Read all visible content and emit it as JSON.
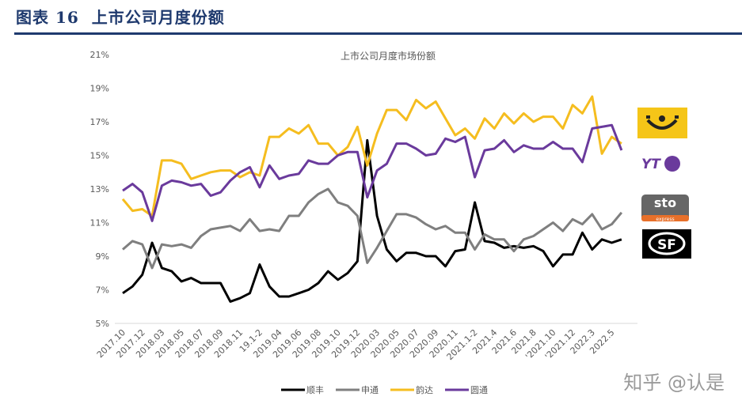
{
  "header": {
    "figure_label": "图表 16",
    "title": "上市公司月度份额"
  },
  "watermark": "知乎 @认是",
  "logos": [
    "yunda-logo",
    "yto-logo",
    "sto-logo",
    "sf-logo"
  ],
  "logo_text": {
    "yto": "YT",
    "sto": "sto",
    "sto_sub": "express",
    "sf": "SF"
  },
  "chart_data": {
    "type": "line",
    "title": "上市公司月度市场份额",
    "xlabel": "",
    "ylabel": "",
    "ylim": [
      5,
      21
    ],
    "yticks": [
      "5%",
      "7%",
      "9%",
      "11%",
      "13%",
      "15%",
      "17%",
      "19%",
      "21%"
    ],
    "grid": false,
    "legend": "bottom",
    "x_tick_labels": [
      "2017.10",
      "2017.12",
      "2018.03",
      "2018.05",
      "2018.07",
      "2018.09",
      "2018.11",
      "19.1-2",
      "2019.04",
      "2019.06",
      "2019.08",
      "2019.10",
      "2019.12",
      "2020.03",
      "2020.05",
      "2020.07",
      "2020.09",
      "2020.11",
      "2021.1-2",
      "2021.4",
      "2021.6",
      "2021.8",
      "'2021.10",
      "'2021.12",
      "2022.3",
      "2022.5"
    ],
    "series": [
      {
        "name": "顺丰",
        "color": "#000000",
        "values": [
          6.8,
          7.2,
          7.9,
          9.8,
          8.3,
          8.1,
          7.5,
          7.7,
          7.4,
          7.4,
          7.4,
          6.3,
          6.5,
          6.8,
          8.5,
          7.2,
          6.6,
          6.6,
          6.8,
          7.0,
          7.4,
          8.1,
          7.6,
          8.0,
          8.7,
          15.9,
          11.4,
          9.4,
          8.7,
          9.2,
          9.2,
          9.0,
          9.0,
          8.4,
          9.3,
          9.4,
          12.2,
          9.9,
          9.8,
          9.5,
          9.6,
          9.5,
          9.6,
          9.3,
          8.4,
          9.1,
          9.1,
          10.4,
          9.4,
          10.0,
          9.8,
          10.0
        ]
      },
      {
        "name": "申通",
        "color": "#7f7f7f",
        "values": [
          9.4,
          9.9,
          9.7,
          8.3,
          9.7,
          9.6,
          9.7,
          9.5,
          10.2,
          10.6,
          10.7,
          10.8,
          10.5,
          11.2,
          10.5,
          10.6,
          10.5,
          11.4,
          11.4,
          12.2,
          12.7,
          13.0,
          12.2,
          12.0,
          11.4,
          8.6,
          9.5,
          10.5,
          11.5,
          11.5,
          11.3,
          10.9,
          10.6,
          10.8,
          10.4,
          10.4,
          9.4,
          10.3,
          10.0,
          10.0,
          9.3,
          10.0,
          10.2,
          10.6,
          11.0,
          10.5,
          11.2,
          10.9,
          11.5,
          10.6,
          10.9,
          11.6
        ]
      },
      {
        "name": "韵达",
        "color": "#f5bd1f",
        "values": [
          12.4,
          11.7,
          11.8,
          11.4,
          14.7,
          14.7,
          14.5,
          13.6,
          13.8,
          14.0,
          14.1,
          14.1,
          13.7,
          14.0,
          13.8,
          16.1,
          16.1,
          16.6,
          16.3,
          16.8,
          15.7,
          15.7,
          15.0,
          15.5,
          16.7,
          14.4,
          16.3,
          17.7,
          17.7,
          17.1,
          18.3,
          17.8,
          18.2,
          17.2,
          16.2,
          16.6,
          16.0,
          17.2,
          16.6,
          17.5,
          16.9,
          17.5,
          17.0,
          17.3,
          17.3,
          16.6,
          18.0,
          17.5,
          18.5,
          15.1,
          16.1,
          15.7
        ]
      },
      {
        "name": "圆通",
        "color": "#6a3a9c",
        "values": [
          12.9,
          13.3,
          12.8,
          11.1,
          13.2,
          13.5,
          13.4,
          13.2,
          13.3,
          12.6,
          12.8,
          13.5,
          14.0,
          14.3,
          13.1,
          14.4,
          13.6,
          13.8,
          13.9,
          14.7,
          14.5,
          14.5,
          15.0,
          15.2,
          15.2,
          12.5,
          14.1,
          14.5,
          15.7,
          15.7,
          15.4,
          15.0,
          15.1,
          16.0,
          15.8,
          16.1,
          13.7,
          15.3,
          15.4,
          15.9,
          15.2,
          15.6,
          15.4,
          15.4,
          15.8,
          15.4,
          15.4,
          14.6,
          16.6,
          16.7,
          16.8,
          15.3
        ]
      }
    ]
  }
}
